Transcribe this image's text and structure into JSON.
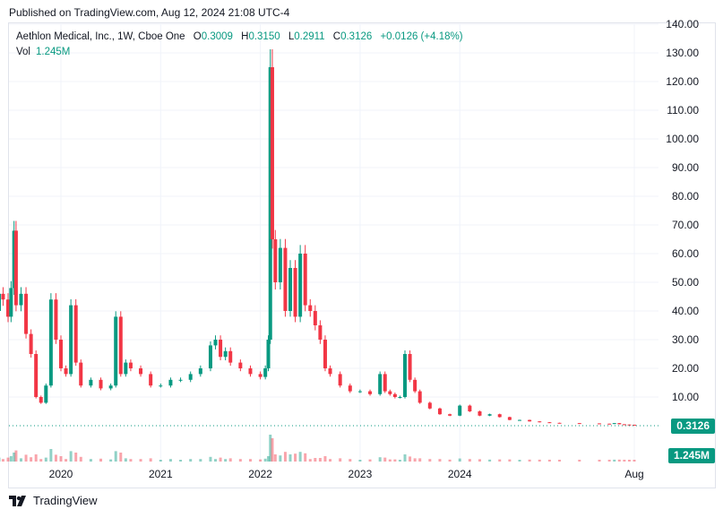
{
  "published": "Published on TradingView.com, Aug 12, 2024 21:08 UTC-4",
  "legend": {
    "symbol": "Aethlon Medical, Inc., 1W, Cboe One",
    "open_label": "O",
    "open": "0.3009",
    "high_label": "H",
    "high": "0.3150",
    "low_label": "L",
    "low": "0.2911",
    "close_label": "C",
    "close": "0.3126",
    "change": "+0.0126 (+4.18%)",
    "vol_label": "Vol",
    "vol": "1.245M"
  },
  "last_price_badge": "0.3126",
  "volume_badge": "1.245M",
  "brand": "TradingView",
  "colors": {
    "up": "#089981",
    "down": "#f23645",
    "grid": "#f0f3fa",
    "text": "#131722"
  },
  "chart_data": {
    "type": "candlestick",
    "title": "Aethlon Medical, Inc., 1W, Cboe One",
    "y_ticks": [
      "10.00",
      "20.00",
      "30.00",
      "40.00",
      "50.00",
      "60.00",
      "70.00",
      "80.00",
      "90.00",
      "100.00",
      "110.00",
      "120.00",
      "130.00",
      "140.00"
    ],
    "x_ticks": [
      "2020",
      "2021",
      "2022",
      "2023",
      "2024",
      "Aug"
    ],
    "ylim": [
      0,
      140
    ],
    "last_close": 0.3126,
    "series": [
      {
        "name": "price",
        "points": [
          [
            2019.33,
            40
          ],
          [
            2019.38,
            46
          ],
          [
            2019.42,
            44
          ],
          [
            2019.47,
            38
          ],
          [
            2019.5,
            48
          ],
          [
            2019.53,
            68
          ],
          [
            2019.55,
            42
          ],
          [
            2019.6,
            46
          ],
          [
            2019.65,
            32
          ],
          [
            2019.7,
            25
          ],
          [
            2019.75,
            10
          ],
          [
            2019.8,
            8
          ],
          [
            2019.85,
            14
          ],
          [
            2019.9,
            44
          ],
          [
            2019.95,
            30
          ],
          [
            2020.0,
            20
          ],
          [
            2020.05,
            18
          ],
          [
            2020.1,
            42
          ],
          [
            2020.15,
            22
          ],
          [
            2020.2,
            14
          ],
          [
            2020.3,
            16
          ],
          [
            2020.4,
            13
          ],
          [
            2020.5,
            14
          ],
          [
            2020.55,
            38
          ],
          [
            2020.6,
            18
          ],
          [
            2020.65,
            22
          ],
          [
            2020.7,
            20
          ],
          [
            2020.8,
            18
          ],
          [
            2020.9,
            14
          ],
          [
            2021.0,
            14
          ],
          [
            2021.1,
            16
          ],
          [
            2021.2,
            16
          ],
          [
            2021.3,
            18
          ],
          [
            2021.4,
            20
          ],
          [
            2021.5,
            28
          ],
          [
            2021.55,
            30
          ],
          [
            2021.6,
            24
          ],
          [
            2021.65,
            26
          ],
          [
            2021.7,
            22
          ],
          [
            2021.8,
            20
          ],
          [
            2021.9,
            18
          ],
          [
            2022.0,
            17
          ],
          [
            2022.05,
            20
          ],
          [
            2022.08,
            30
          ],
          [
            2022.1,
            125
          ],
          [
            2022.12,
            65
          ],
          [
            2022.15,
            50
          ],
          [
            2022.2,
            62
          ],
          [
            2022.25,
            40
          ],
          [
            2022.3,
            55
          ],
          [
            2022.35,
            38
          ],
          [
            2022.4,
            60
          ],
          [
            2022.45,
            42
          ],
          [
            2022.5,
            40
          ],
          [
            2022.55,
            35
          ],
          [
            2022.6,
            30
          ],
          [
            2022.65,
            20
          ],
          [
            2022.7,
            18
          ],
          [
            2022.8,
            14
          ],
          [
            2022.9,
            12
          ],
          [
            2023.0,
            12
          ],
          [
            2023.1,
            11
          ],
          [
            2023.2,
            18
          ],
          [
            2023.25,
            12
          ],
          [
            2023.3,
            11
          ],
          [
            2023.35,
            10
          ],
          [
            2023.4,
            10
          ],
          [
            2023.45,
            25
          ],
          [
            2023.5,
            16
          ],
          [
            2023.55,
            12
          ],
          [
            2023.6,
            8
          ],
          [
            2023.7,
            6
          ],
          [
            2023.8,
            4
          ],
          [
            2023.9,
            3.5
          ],
          [
            2024.0,
            7
          ],
          [
            2024.1,
            5
          ],
          [
            2024.2,
            3.5
          ],
          [
            2024.3,
            4
          ],
          [
            2024.4,
            3
          ],
          [
            2024.5,
            2
          ],
          [
            2024.6,
            2
          ],
          [
            2024.7,
            1.5
          ],
          [
            2024.8,
            1.2
          ],
          [
            2024.9,
            1
          ],
          [
            2025.0,
            0.9
          ],
          [
            2025.2,
            0.8
          ],
          [
            2025.4,
            0.7
          ],
          [
            2025.5,
            0.6
          ],
          [
            2025.55,
            0.9
          ],
          [
            2025.6,
            0.5
          ],
          [
            2025.65,
            0.4
          ],
          [
            2025.7,
            0.33
          ],
          [
            2025.75,
            0.31
          ]
        ]
      }
    ]
  }
}
